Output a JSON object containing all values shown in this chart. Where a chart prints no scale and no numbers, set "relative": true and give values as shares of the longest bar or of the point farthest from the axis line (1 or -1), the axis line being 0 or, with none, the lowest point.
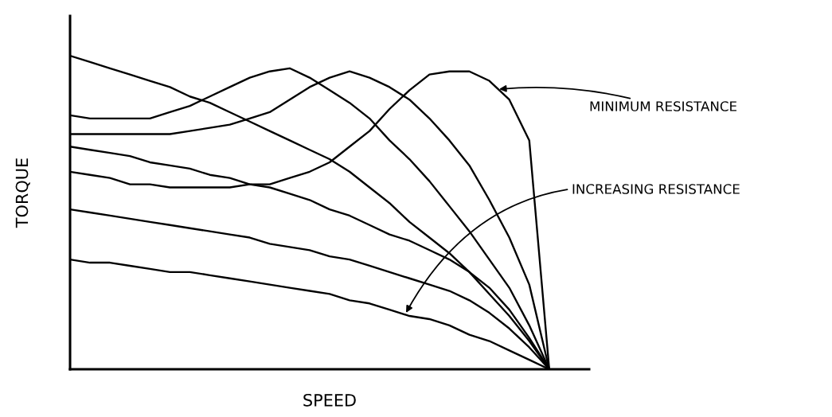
{
  "chart_data": {
    "type": "line",
    "relative": true,
    "xlabel": "SPEED",
    "ylabel": "TORQUE",
    "tick_labels": false,
    "legend": false,
    "marker": "none",
    "line_style": "solid",
    "categories": [
      null,
      null,
      null,
      null,
      null,
      null,
      null,
      null,
      null,
      null,
      null,
      null,
      null,
      null,
      null,
      null,
      null,
      null,
      null,
      null,
      null,
      null,
      null,
      null,
      null,
      null,
      null
    ],
    "annotations": [
      "MINIMUM RESISTANCE",
      "INCREASING RESISTANCE"
    ],
    "series": [
      {
        "color": "#000000",
        "values": [
          1.0,
          0.98,
          0.96,
          0.94,
          0.92,
          0.9,
          0.87,
          0.85,
          0.82,
          0.79,
          0.76,
          0.73,
          0.7,
          0.67,
          0.63,
          0.58,
          0.53,
          0.47,
          0.42,
          0.37,
          0.31,
          0.24,
          0.17,
          0.09,
          0,
          null,
          null
        ]
      },
      {
        "color": "#000000",
        "values": [
          0.81,
          0.8,
          0.8,
          0.8,
          0.8,
          0.82,
          0.84,
          0.87,
          0.9,
          0.93,
          0.95,
          0.96,
          0.93,
          0.89,
          0.85,
          0.8,
          0.73,
          0.67,
          0.6,
          0.52,
          0.44,
          0.35,
          0.26,
          0.14,
          0,
          null,
          null
        ]
      },
      {
        "color": "#000000",
        "values": [
          0.75,
          0.75,
          0.75,
          0.75,
          0.75,
          0.75,
          0.76,
          0.77,
          0.78,
          0.8,
          0.82,
          0.86,
          0.9,
          0.93,
          0.95,
          0.93,
          0.9,
          0.86,
          0.8,
          0.73,
          0.65,
          0.54,
          0.42,
          0.27,
          0,
          null,
          null
        ]
      },
      {
        "color": "#000000",
        "values": [
          0.63,
          0.62,
          0.61,
          0.59,
          0.59,
          0.58,
          0.58,
          0.58,
          0.58,
          0.59,
          0.59,
          0.61,
          0.63,
          0.66,
          0.71,
          0.76,
          0.83,
          0.89,
          0.94,
          0.95,
          0.95,
          0.92,
          0.86,
          0.73,
          0,
          null,
          null
        ]
      },
      {
        "color": "#000000",
        "values": [
          0.71,
          0.7,
          0.69,
          0.68,
          0.66,
          0.65,
          0.64,
          0.62,
          0.61,
          0.59,
          0.58,
          0.56,
          0.54,
          0.51,
          0.49,
          0.46,
          0.43,
          0.41,
          0.38,
          0.35,
          0.31,
          0.26,
          0.19,
          0.1,
          0,
          null,
          null
        ]
      },
      {
        "color": "#000000",
        "values": [
          0.51,
          0.5,
          0.49,
          0.48,
          0.47,
          0.46,
          0.45,
          0.44,
          0.43,
          0.42,
          0.4,
          0.39,
          0.38,
          0.36,
          0.35,
          0.33,
          0.31,
          0.29,
          0.27,
          0.25,
          0.22,
          0.18,
          0.13,
          0.07,
          0,
          null,
          null
        ]
      },
      {
        "color": "#000000",
        "values": [
          0.35,
          0.34,
          0.34,
          0.33,
          0.32,
          0.31,
          0.31,
          0.3,
          0.29,
          0.28,
          0.27,
          0.26,
          0.25,
          0.24,
          0.22,
          0.21,
          0.19,
          0.17,
          0.16,
          0.14,
          0.11,
          0.09,
          0.06,
          0.03,
          0,
          null,
          null
        ]
      }
    ]
  }
}
